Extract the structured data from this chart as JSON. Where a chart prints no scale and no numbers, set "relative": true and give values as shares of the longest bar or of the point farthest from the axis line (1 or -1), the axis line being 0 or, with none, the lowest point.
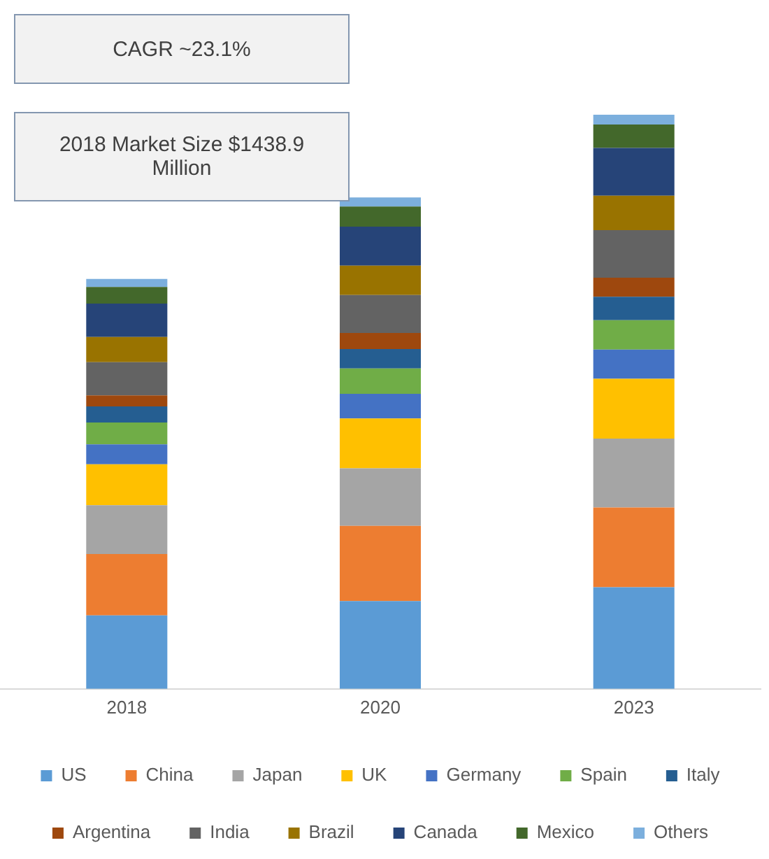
{
  "chart_data": {
    "type": "bar",
    "stacked": true,
    "relative": true,
    "legend": "bottom",
    "grid": false,
    "annotations": [
      "CAGR ~23.1%",
      "2018 Market Size $1438.9 Million"
    ],
    "categories": [
      "2018",
      "2020",
      "2023"
    ],
    "series": [
      {
        "name": "US",
        "color": "#5b9bd5",
        "values": [
          0.128,
          0.153,
          0.177
        ]
      },
      {
        "name": "China",
        "color": "#ed7d31",
        "values": [
          0.107,
          0.131,
          0.139
        ]
      },
      {
        "name": "Japan",
        "color": "#a5a5a5",
        "values": [
          0.085,
          0.1,
          0.12
        ]
      },
      {
        "name": "UK",
        "color": "#ffc000",
        "values": [
          0.071,
          0.087,
          0.104
        ]
      },
      {
        "name": "Germany",
        "color": "#4472c4",
        "values": [
          0.035,
          0.043,
          0.051
        ]
      },
      {
        "name": "Spain",
        "color": "#70ad47",
        "values": [
          0.038,
          0.044,
          0.051
        ]
      },
      {
        "name": "Italy",
        "color": "#255e91",
        "values": [
          0.028,
          0.034,
          0.041
        ]
      },
      {
        "name": "Argentina",
        "color": "#9e480e",
        "values": [
          0.019,
          0.028,
          0.033
        ]
      },
      {
        "name": "India",
        "color": "#636363",
        "values": [
          0.058,
          0.066,
          0.083
        ]
      },
      {
        "name": "Brazil",
        "color": "#997300",
        "values": [
          0.044,
          0.051,
          0.06
        ]
      },
      {
        "name": "Canada",
        "color": "#264478",
        "values": [
          0.058,
          0.068,
          0.083
        ]
      },
      {
        "name": "Mexico",
        "color": "#43682b",
        "values": [
          0.029,
          0.035,
          0.041
        ]
      },
      {
        "name": "Others",
        "color": "#7cafdd",
        "values": [
          0.014,
          0.016,
          0.017
        ]
      }
    ]
  }
}
